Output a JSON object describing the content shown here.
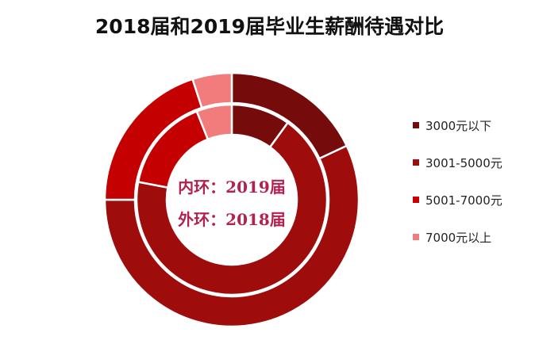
{
  "chart_data": {
    "type": "pie",
    "title": "2018届和2019届毕业生薪酬待遇对比",
    "categories": [
      "3000元以下",
      "3001-5000元",
      "5001-7000元",
      "7000元以上"
    ],
    "colors": [
      "#760b0b",
      "#9e0c0c",
      "#c40000",
      "#f27b7b"
    ],
    "series": [
      {
        "name": "2019届",
        "ring": "inner",
        "values": [
          10,
          68,
          16,
          6
        ]
      },
      {
        "name": "2018届",
        "ring": "outer",
        "values": [
          18,
          57,
          20,
          5
        ]
      }
    ],
    "annotations": [
      "内环：2019届",
      "外环：2018届"
    ],
    "legend_position": "right"
  }
}
